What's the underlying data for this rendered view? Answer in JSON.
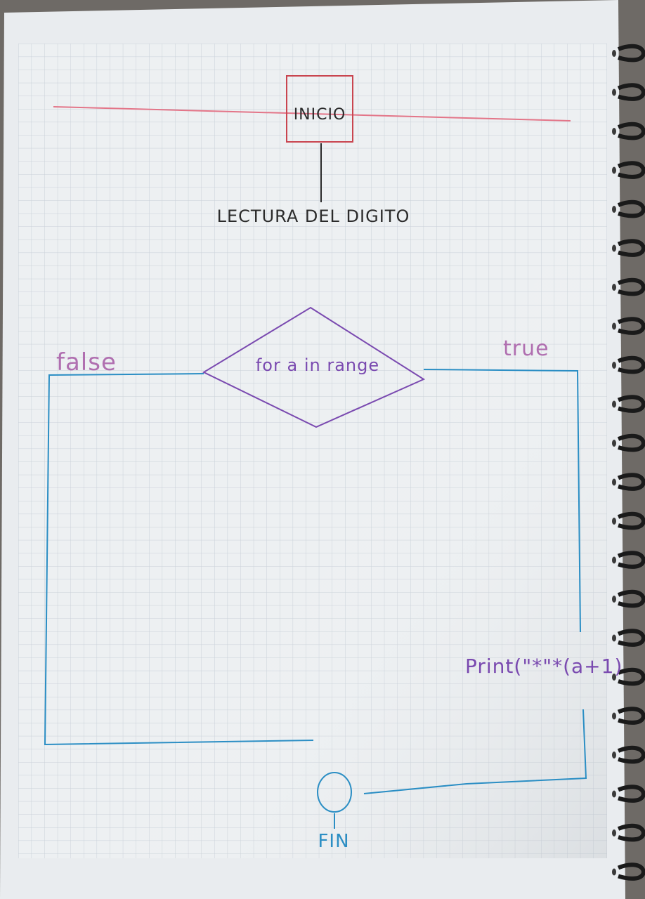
{
  "colors": {
    "paper": "#ebeef0",
    "grid": "#c9d0d8",
    "margin_line": "#e37588",
    "ink_black": "#2b2b2b",
    "ink_purple": "#7a4ab0",
    "ink_pink": "#b06fb0",
    "ink_blue": "#2b8ec4",
    "ink_start_box": "#c9454f",
    "spiral": "#1a1a1a"
  },
  "diagram": {
    "start_label": "INICIO",
    "read_label": "LECTURA DEL DIGITO",
    "decision_label": "for a in range",
    "false_label": "false",
    "true_label": "true",
    "print_label": "Print(\"*\"*(a+1)",
    "end_label": "FIN"
  },
  "icons": {
    "spiral": "spiral-binding-icon"
  }
}
